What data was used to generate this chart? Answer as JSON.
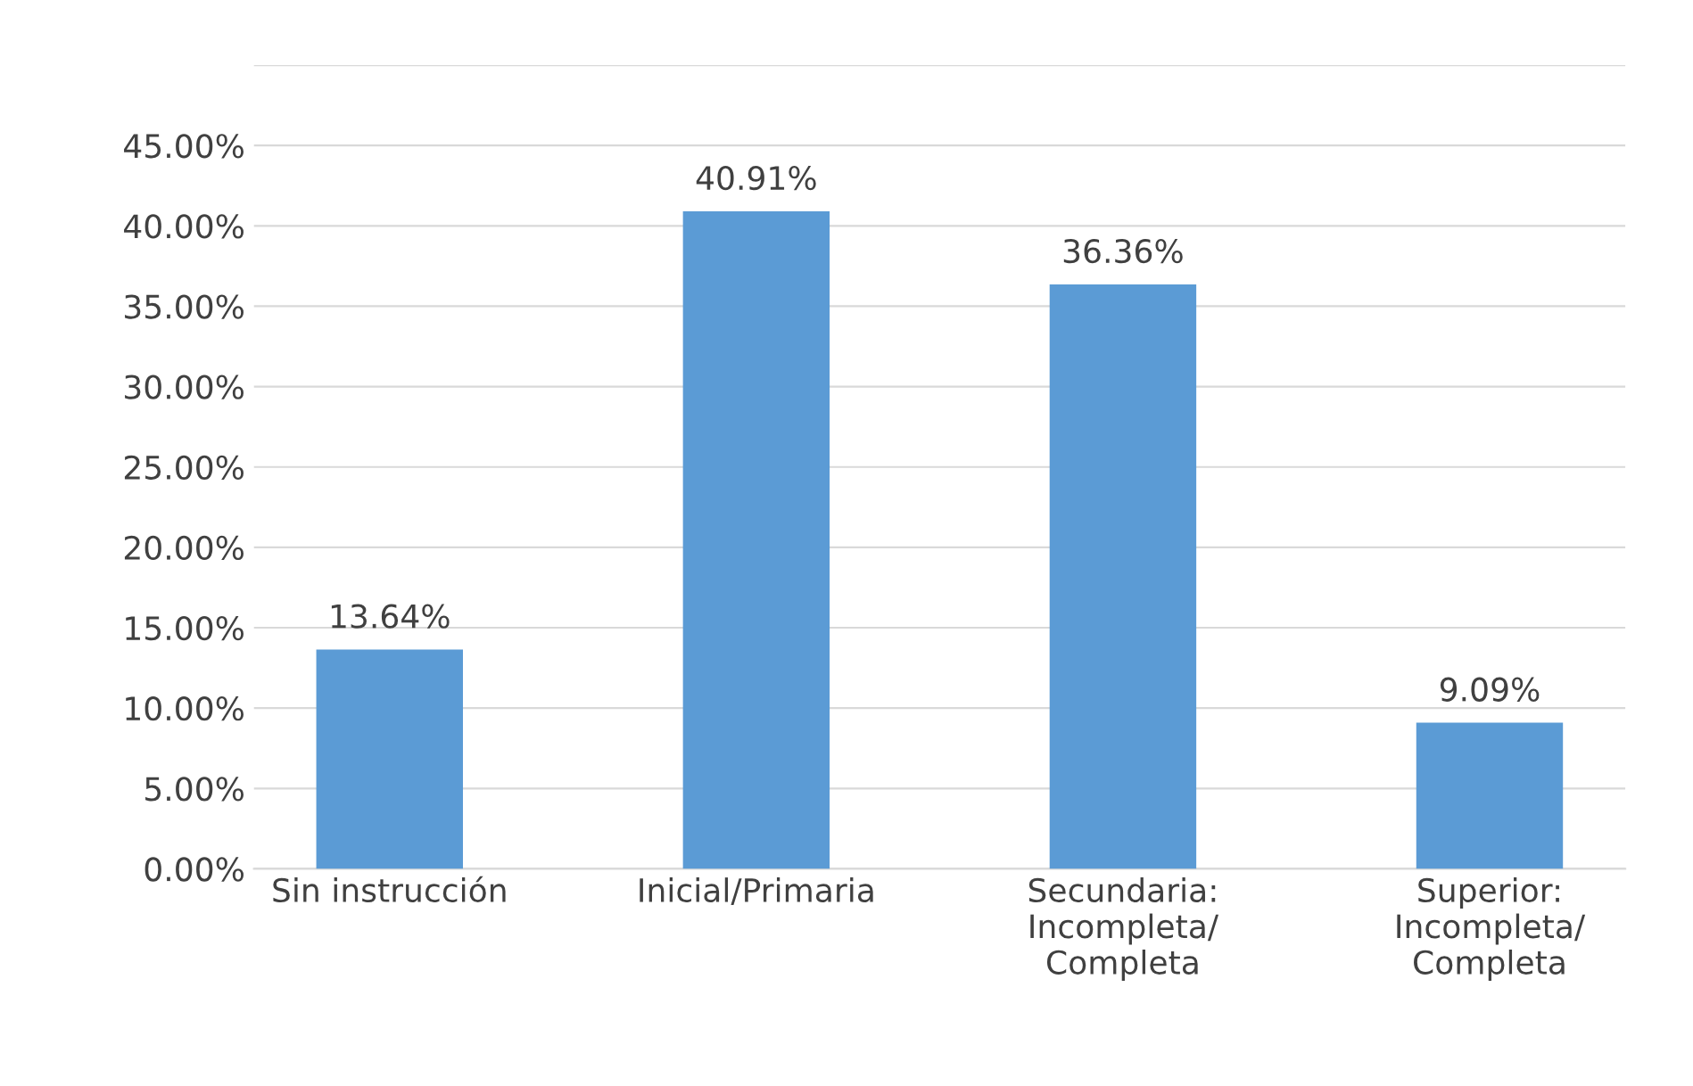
{
  "chart_data": {
    "type": "bar",
    "categories": [
      "Sin instrucción",
      "Inicial/Primaria",
      "Secundaria:\nIncompleta/\nCompleta",
      "Superior:\nIncompleta/\nCompleta"
    ],
    "values": [
      13.64,
      40.91,
      36.36,
      9.09
    ],
    "value_labels": [
      "13.64%",
      "40.91%",
      "36.36%",
      "9.09%"
    ],
    "color": "#5b9bd5",
    "ylim": [
      0,
      50
    ],
    "yticks": [
      {
        "value": 0,
        "label": "0.00%"
      },
      {
        "value": 5,
        "label": "5.00%"
      },
      {
        "value": 10,
        "label": "10.00%"
      },
      {
        "value": 15,
        "label": "15.00%"
      },
      {
        "value": 20,
        "label": "20.00%"
      },
      {
        "value": 25,
        "label": "25.00%"
      },
      {
        "value": 30,
        "label": "30.00%"
      },
      {
        "value": 35,
        "label": "35.00%"
      },
      {
        "value": 40,
        "label": "40.00%"
      },
      {
        "value": 45,
        "label": "45.00%"
      },
      {
        "value": 50,
        "label": null
      }
    ],
    "grid": "y"
  }
}
